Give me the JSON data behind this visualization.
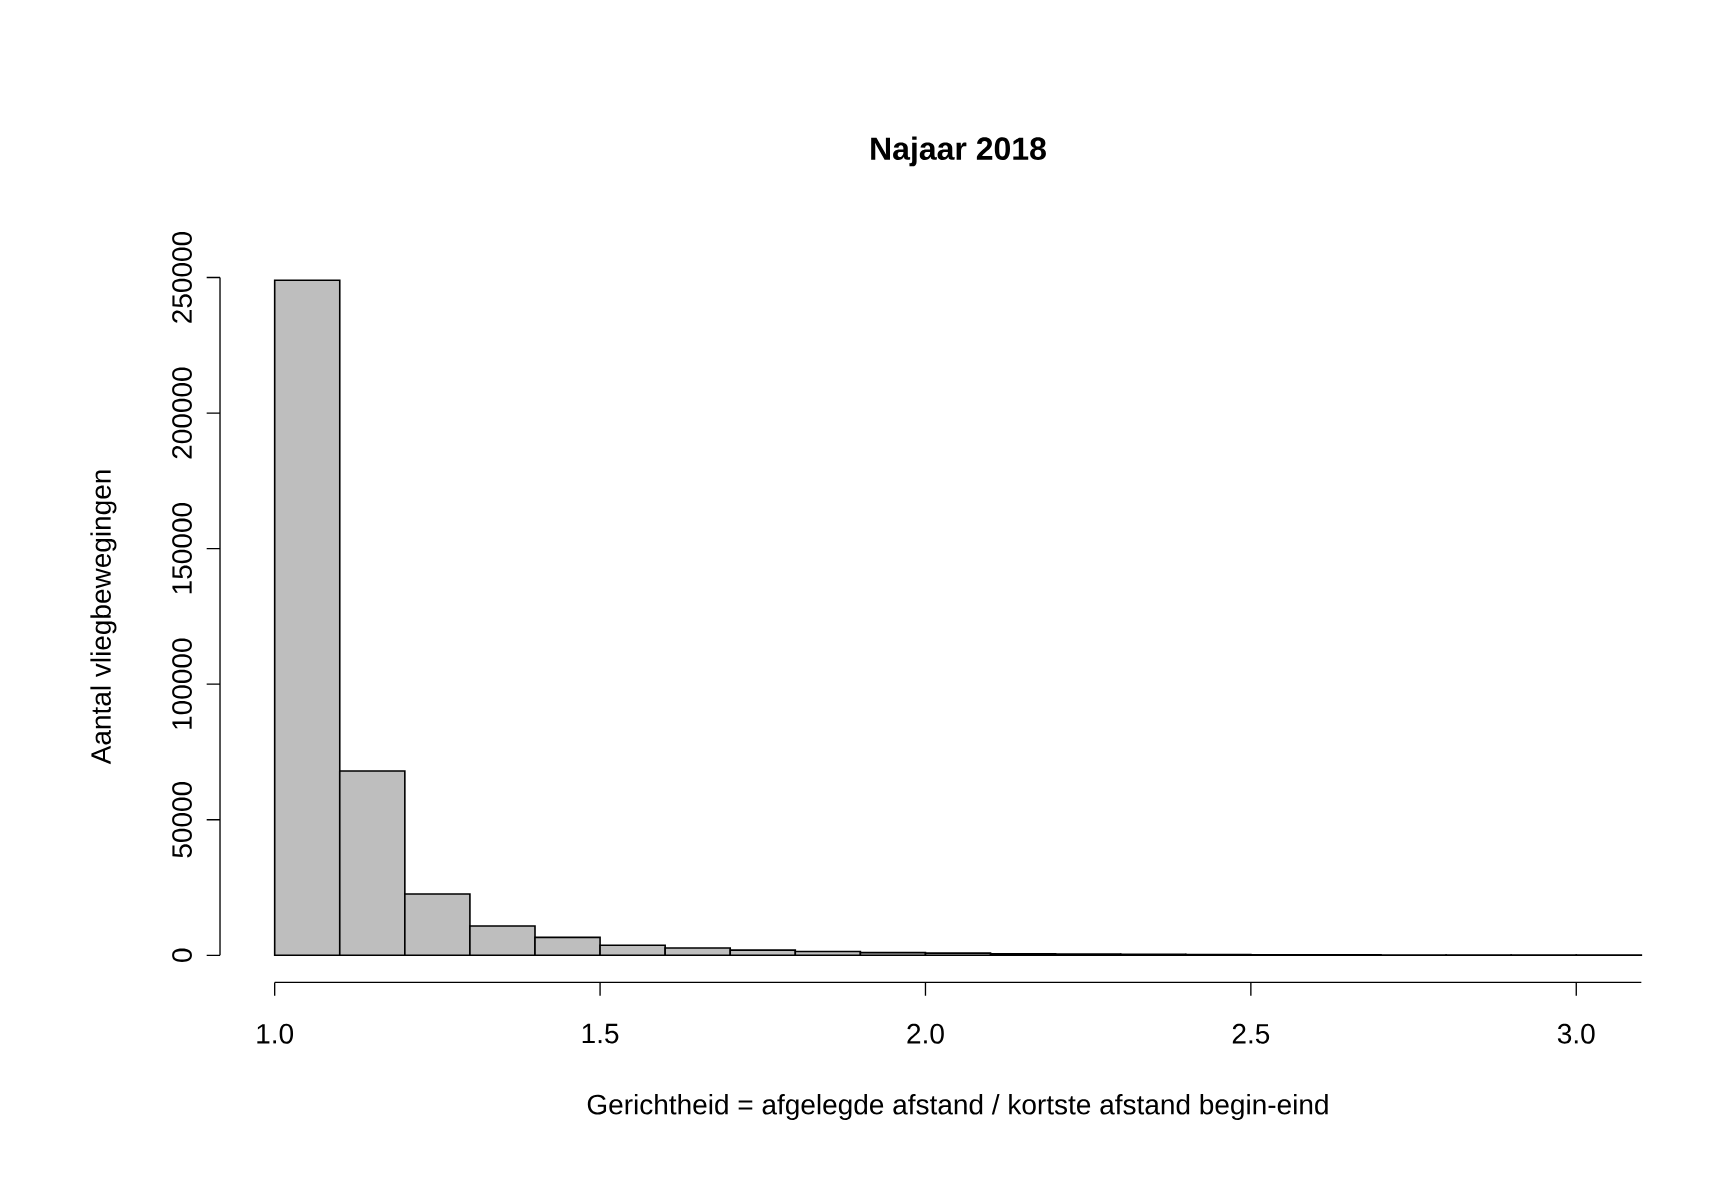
{
  "chart_data": {
    "type": "histogram",
    "title": "Najaar 2018",
    "xlabel": "Gerichtheid = afgelegde afstand / kortste afstand begin-eind",
    "ylabel": "Aantal vliegbewegingen",
    "bins": [
      1.0,
      1.1,
      1.2,
      1.3,
      1.4,
      1.5,
      1.6,
      1.7,
      1.8,
      1.9,
      2.0,
      2.1,
      2.2,
      2.3,
      2.4,
      2.5,
      2.6,
      2.7,
      2.8,
      2.9,
      3.0,
      3.1
    ],
    "values": [
      249000,
      68000,
      22600,
      10800,
      6600,
      3700,
      2700,
      1900,
      1400,
      1000,
      800,
      600,
      500,
      400,
      300,
      200,
      200,
      100,
      100,
      100,
      100
    ],
    "color": "#bebebe",
    "xlim": [
      1.0,
      3.1
    ],
    "ylim": [
      0,
      250000
    ],
    "xticks": [
      {
        "value": 1.0,
        "label": "1.0"
      },
      {
        "value": 1.5,
        "label": "1.5"
      },
      {
        "value": 2.0,
        "label": "2.0"
      },
      {
        "value": 2.5,
        "label": "2.5"
      },
      {
        "value": 3.0,
        "label": "3.0"
      }
    ],
    "yticks": [
      0,
      50000,
      100000,
      150000,
      200000,
      250000
    ]
  }
}
